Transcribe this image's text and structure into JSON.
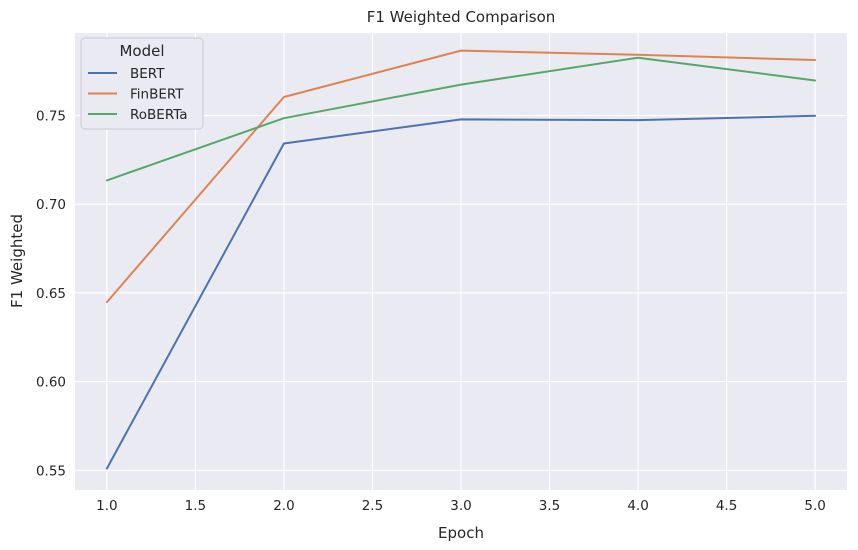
{
  "chart_data": {
    "type": "line",
    "title": "F1 Weighted Comparison",
    "xlabel": "Epoch",
    "ylabel": "F1 Weighted",
    "x": [
      1.0,
      2.0,
      3.0,
      4.0,
      5.0
    ],
    "xlim": [
      0.82,
      5.18
    ],
    "ylim": [
      0.5389,
      0.7965
    ],
    "xticks": [
      "1.0",
      "1.5",
      "2.0",
      "2.5",
      "3.0",
      "3.5",
      "4.0",
      "4.5",
      "5.0"
    ],
    "yticks": [
      "0.55",
      "0.60",
      "0.65",
      "0.70",
      "0.75"
    ],
    "grid": true,
    "legend": {
      "title": "Model",
      "position": "top-left"
    },
    "series": [
      {
        "name": "BERT",
        "color": "#4c72b0",
        "values": [
          0.551,
          0.7342,
          0.7478,
          0.7474,
          0.7498
        ]
      },
      {
        "name": "FinBERT",
        "color": "#dd8452",
        "values": [
          0.6448,
          0.7604,
          0.7866,
          0.7842,
          0.7813
        ]
      },
      {
        "name": "RoBERTa",
        "color": "#55a868",
        "values": [
          0.7134,
          0.7485,
          0.7674,
          0.7826,
          0.7697
        ]
      }
    ],
    "colors": {
      "plot_background": "#eaeaf2",
      "grid": "#ffffff",
      "legend_background": "#eaeaf2"
    }
  }
}
